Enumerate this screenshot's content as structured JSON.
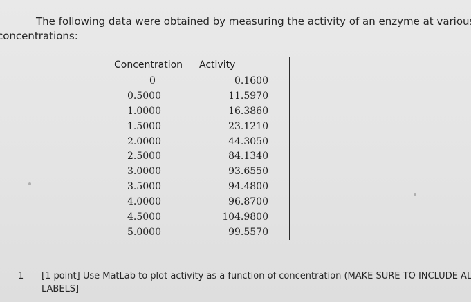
{
  "intro": {
    "line1": "The following data were obtained by measuring the activity of an enzyme at various",
    "line2": "concentrations:"
  },
  "table": {
    "headers": [
      "Concentration",
      "Activity"
    ],
    "rows": [
      [
        "0",
        "0.1600"
      ],
      [
        "0.5000",
        "11.5970"
      ],
      [
        "1.0000",
        "16.3860"
      ],
      [
        "1.5000",
        "23.1210"
      ],
      [
        "2.0000",
        "44.3050"
      ],
      [
        "2.5000",
        "84.1340"
      ],
      [
        "3.0000",
        "93.6550"
      ],
      [
        "3.5000",
        "94.4800"
      ],
      [
        "4.0000",
        "96.8700"
      ],
      [
        "4.5000",
        "104.9800"
      ],
      [
        "5.0000",
        "99.5570"
      ]
    ]
  },
  "question": {
    "number": "1",
    "text": "[1 point] Use MatLab to plot activity as a function of concentration (MAKE SURE TO INCLUDE ALL LABELS]"
  }
}
